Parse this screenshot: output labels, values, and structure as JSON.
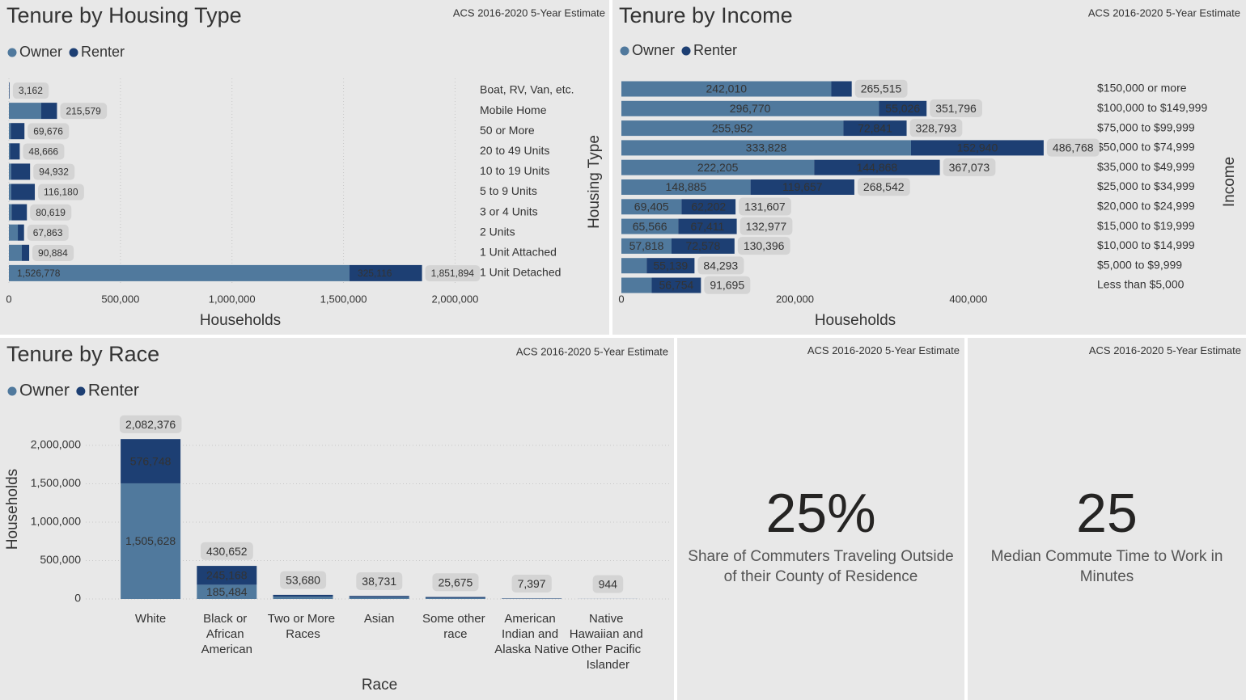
{
  "chart_data": [
    {
      "type": "bar",
      "orientation": "horizontal",
      "stacked": true,
      "title": "Tenure by Housing Type",
      "note": "ACS 2016-2020 5-Year Estimate",
      "x_label": "Households",
      "y_label": "Housing Type",
      "categories": [
        "Boat, RV, Van, etc.",
        "Mobile Home",
        "50 or More",
        "20 to 49 Units",
        "10 to 19 Units",
        "5 to 9 Units",
        "3 or 4 Units",
        "2 Units",
        "1 Unit Attached",
        "1 Unit Detached"
      ],
      "series": [
        {
          "name": "Owner",
          "color": "#50799d",
          "values": [
            1000,
            145000,
            8000,
            5000,
            10000,
            10000,
            12000,
            40000,
            58000,
            1526778
          ],
          "value_labels": [
            null,
            null,
            null,
            null,
            null,
            null,
            null,
            null,
            null,
            "1,526,778"
          ]
        },
        {
          "name": "Renter",
          "color": "#1d3f73",
          "values": [
            2162,
            70579,
            61676,
            43666,
            84932,
            106180,
            68619,
            27863,
            32884,
            325116
          ],
          "value_labels": [
            null,
            null,
            null,
            null,
            null,
            null,
            null,
            null,
            null,
            "325,116"
          ]
        }
      ],
      "total_labels": [
        "3,162",
        "215,579",
        "69,676",
        "48,666",
        "94,932",
        "116,180",
        "80,619",
        "67,863",
        "90,884",
        "1,851,894"
      ],
      "xlim": [
        0,
        2100000
      ],
      "xticks": [
        0,
        {
          "value": 500000,
          "label": "500,000"
        },
        {
          "value": 1000000,
          "label": "1,000,000"
        },
        {
          "value": 1500000,
          "label": "1,500,000"
        },
        {
          "value": 2000000,
          "label": "2,000,000"
        }
      ],
      "grid": true,
      "legend": "top-left"
    },
    {
      "type": "bar",
      "orientation": "horizontal",
      "stacked": true,
      "title": "Tenure by Income",
      "note": "ACS 2016-2020 5-Year Estimate",
      "x_label": "Households",
      "y_label": "Income",
      "categories": [
        "$150,000 or more",
        "$100,000 to $149,999",
        "$75,000 to $99,999",
        "$50,000 to $74,999",
        "$35,000 to $49,999",
        "$25,000 to $34,999",
        "$20,000 to $24,999",
        "$15,000 to $19,999",
        "$10,000 to $14,999",
        "$5,000 to $9,999",
        "Less than $5,000"
      ],
      "series": [
        {
          "name": "Owner",
          "color": "#50799d",
          "values": [
            242010,
            296770,
            255952,
            333828,
            222205,
            148885,
            69405,
            65566,
            57818,
            29154,
            34941
          ],
          "value_labels": [
            "242,010",
            "296,770",
            "255,952",
            "333,828",
            "222,205",
            "148,885",
            "69,405",
            "65,566",
            "57,818",
            null,
            null
          ]
        },
        {
          "name": "Renter",
          "color": "#1d3f73",
          "values": [
            23505,
            55026,
            72841,
            152940,
            144868,
            119657,
            62202,
            67411,
            72578,
            55139,
            56754
          ],
          "value_labels": [
            null,
            "55,026",
            "72,841",
            "152,940",
            "144,868",
            "119,657",
            "62,202",
            "67,411",
            "72,578",
            "55,139",
            "56,754"
          ]
        }
      ],
      "total_labels": [
        "265,515",
        "351,796",
        "328,793",
        "486,768",
        "367,073",
        "268,542",
        "131,607",
        "132,977",
        "130,396",
        "84,293",
        "91,695"
      ],
      "xlim": [
        0,
        540000
      ],
      "xticks": [
        0,
        {
          "value": 200000,
          "label": "200,000"
        },
        {
          "value": 400000,
          "label": "400,000"
        }
      ],
      "grid": false,
      "legend": "top-left"
    },
    {
      "type": "bar",
      "orientation": "vertical",
      "stacked": true,
      "title": "Tenure by Race",
      "note": "ACS 2016-2020 5-Year Estimate",
      "x_label": "Race",
      "y_label": "Households",
      "categories": [
        "White",
        "Black or African American",
        "Two or More Races",
        "Asian",
        "Some other race",
        "American Indian and Alaska Native",
        "Native Hawaiian and Other Pacific Islander"
      ],
      "series": [
        {
          "name": "Owner",
          "color": "#50799d",
          "values": [
            1505628,
            185484,
            30000,
            22000,
            12000,
            4000,
            400
          ],
          "value_labels": [
            "1,505,628",
            "185,484",
            null,
            null,
            null,
            null,
            null
          ]
        },
        {
          "name": "Renter",
          "color": "#1d3f73",
          "values": [
            576748,
            245168,
            23680,
            16731,
            13675,
            3397,
            544
          ],
          "value_labels": [
            "576,748",
            "245,168",
            null,
            null,
            null,
            null,
            null
          ]
        }
      ],
      "total_labels": [
        "2,082,376",
        "430,652",
        "53,680",
        "38,731",
        "25,675",
        "7,397",
        "944"
      ],
      "ylim": [
        0,
        2200000
      ],
      "yticks": [
        0,
        {
          "value": 500000,
          "label": "500,000"
        },
        {
          "value": 1000000,
          "label": "1,000,000"
        },
        {
          "value": 1500000,
          "label": "1,500,000"
        },
        {
          "value": 2000000,
          "label": "2,000,000"
        }
      ],
      "grid": true,
      "legend": "top-left"
    }
  ],
  "cards": [
    {
      "note": "ACS 2016-2020 5-Year Estimate",
      "value": "25%",
      "label": "Share of Commuters Traveling Outside of their County of Residence"
    },
    {
      "note": "ACS 2016-2020 5-Year Estimate",
      "value": 25,
      "label": "Median Commute Time to Work in Minutes"
    }
  ]
}
